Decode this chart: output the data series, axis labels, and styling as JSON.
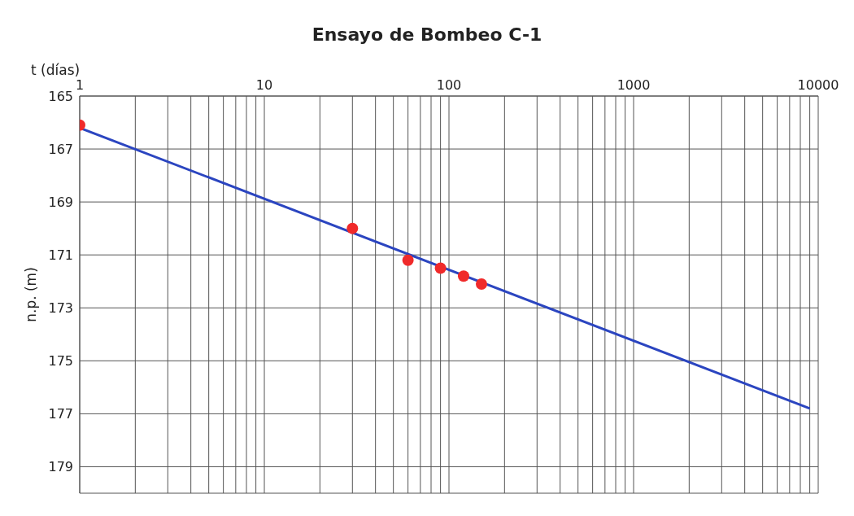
{
  "chart_data": {
    "type": "scatter",
    "title": "Ensayo de Bombeo C-1",
    "xlabel": "t (días)",
    "ylabel": "n.p. (m)",
    "log": "x",
    "grid": true,
    "legend": false,
    "xlim": [
      1,
      10000
    ],
    "xticks": [
      1,
      {
        "value": 2,
        "label": null
      },
      {
        "value": 3,
        "label": null
      },
      {
        "value": 4,
        "label": null
      },
      {
        "value": 5,
        "label": null
      },
      {
        "value": 6,
        "label": null
      },
      {
        "value": 7,
        "label": null
      },
      {
        "value": 8,
        "label": null
      },
      {
        "value": 9,
        "label": null
      },
      10,
      {
        "value": 20,
        "label": null
      },
      {
        "value": 30,
        "label": null
      },
      {
        "value": 40,
        "label": null
      },
      {
        "value": 50,
        "label": null
      },
      {
        "value": 60,
        "label": null
      },
      {
        "value": 70,
        "label": null
      },
      {
        "value": 80,
        "label": null
      },
      {
        "value": 90,
        "label": null
      },
      100,
      {
        "value": 200,
        "label": null
      },
      {
        "value": 300,
        "label": null
      },
      {
        "value": 400,
        "label": null
      },
      {
        "value": 500,
        "label": null
      },
      {
        "value": 600,
        "label": null
      },
      {
        "value": 700,
        "label": null
      },
      {
        "value": 800,
        "label": null
      },
      {
        "value": 900,
        "label": null
      },
      1000,
      {
        "value": 2000,
        "label": null
      },
      {
        "value": 3000,
        "label": null
      },
      {
        "value": 4000,
        "label": null
      },
      {
        "value": 5000,
        "label": null
      },
      {
        "value": 6000,
        "label": null
      },
      {
        "value": 7000,
        "label": null
      },
      {
        "value": 8000,
        "label": null
      },
      {
        "value": 9000,
        "label": null
      },
      10000
    ],
    "ylim": [
      180,
      165
    ],
    "yticks": [
      165,
      167,
      169,
      171,
      173,
      175,
      177,
      179
    ],
    "series": [
      {
        "type": "line",
        "color": "#2b45c0",
        "marker": "none",
        "x": [
          1,
          9000
        ],
        "values": [
          166.2,
          176.8
        ]
      },
      {
        "color": "#f02a2a",
        "marker": "circle",
        "x": [
          1,
          30,
          60,
          90,
          120,
          150
        ],
        "values": [
          166.1,
          170.0,
          171.2,
          171.5,
          171.8,
          172.1
        ]
      }
    ]
  }
}
